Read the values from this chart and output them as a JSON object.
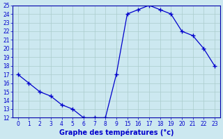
{
  "temps": [
    17,
    16,
    15,
    14.5,
    13.5,
    13,
    12,
    12,
    12,
    17,
    24,
    24.5,
    25,
    24.5,
    24,
    22,
    21.5,
    20,
    18
  ],
  "x_plot": [
    0,
    1,
    2,
    3,
    4,
    5,
    6,
    7,
    8,
    9,
    10,
    11,
    12,
    13,
    14,
    15,
    16,
    17,
    18
  ],
  "xlim": [
    -0.5,
    18.5
  ],
  "xtick_positions": [
    0,
    1,
    2,
    3,
    4,
    5,
    6,
    7,
    8,
    9,
    10,
    11,
    12,
    13,
    14,
    15,
    16,
    17,
    18
  ],
  "xtick_labels": [
    "0",
    "1",
    "2",
    "3",
    "4",
    "5",
    "6",
    "7",
    "8",
    "9",
    "15",
    "16",
    "17",
    "18",
    "19",
    "20",
    "21",
    "22",
    "23"
  ],
  "ylim": [
    12,
    25
  ],
  "yticks": [
    12,
    13,
    14,
    15,
    16,
    17,
    18,
    19,
    20,
    21,
    22,
    23,
    24,
    25
  ],
  "xlabel": "Graphe des températures (°c)",
  "line_color": "#0000cc",
  "marker_color": "#0000cc",
  "bg_color": "#cce8f0",
  "grid_color": "#aacccc",
  "axis_color": "#0000aa",
  "label_color": "#0000cc",
  "axis_label_fontsize": 7.0,
  "tick_fontsize": 5.5
}
